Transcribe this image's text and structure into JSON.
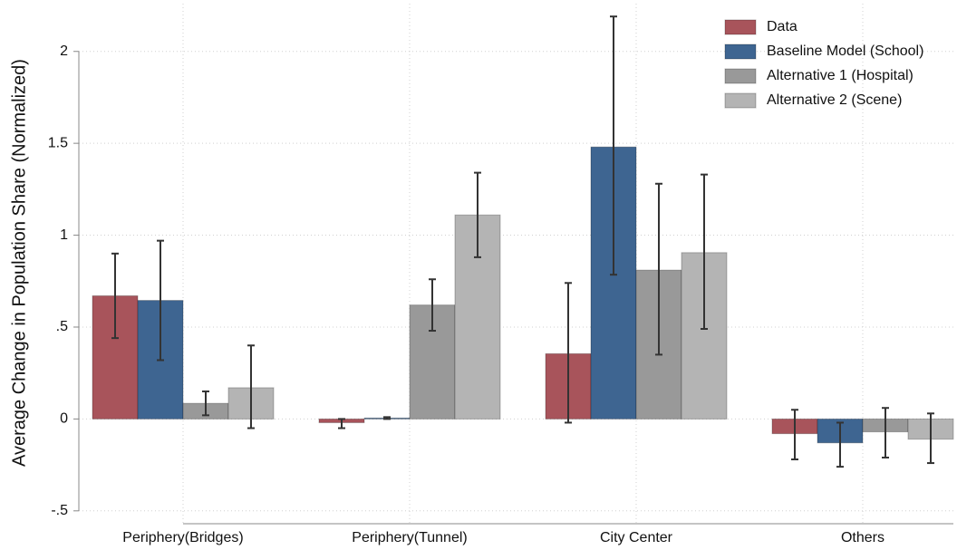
{
  "chart_data": {
    "type": "bar",
    "y_label": "Average Change in Population Share (Normalized)",
    "categories": [
      "Periphery(Bridges)",
      "Periphery(Tunnel)",
      "City Center",
      "Others"
    ],
    "series": [
      {
        "name": "Data",
        "color": "#a8545b",
        "values": [
          0.67,
          -0.02,
          0.355,
          -0.08
        ],
        "lower": [
          0.44,
          -0.05,
          -0.02,
          -0.22
        ],
        "upper": [
          0.9,
          0.0,
          0.74,
          0.05
        ]
      },
      {
        "name": "Baseline Model (School)",
        "color": "#3e6591",
        "values": [
          0.645,
          0.005,
          1.48,
          -0.13
        ],
        "lower": [
          0.32,
          0.0,
          0.785,
          -0.26
        ],
        "upper": [
          0.97,
          0.01,
          2.19,
          -0.02
        ]
      },
      {
        "name": "Alternative 1 (Hospital)",
        "color": "#999999",
        "values": [
          0.085,
          0.62,
          0.81,
          -0.07
        ],
        "lower": [
          0.02,
          0.48,
          0.35,
          -0.21
        ],
        "upper": [
          0.15,
          0.76,
          1.28,
          0.06
        ]
      },
      {
        "name": "Alternative 2 (Scene)",
        "color": "#b4b4b4",
        "values": [
          0.17,
          1.11,
          0.905,
          -0.11
        ],
        "lower": [
          -0.05,
          0.88,
          0.49,
          -0.24
        ],
        "upper": [
          0.4,
          1.34,
          1.33,
          0.03
        ]
      }
    ],
    "ylim": [
      -0.57,
      2.26
    ],
    "yticks": [
      {
        "value": -0.5,
        "label": "-.5"
      },
      0,
      {
        "value": 0.5,
        "label": ".5"
      },
      1,
      1.5,
      2
    ],
    "grid": true,
    "legend": "upper right"
  }
}
